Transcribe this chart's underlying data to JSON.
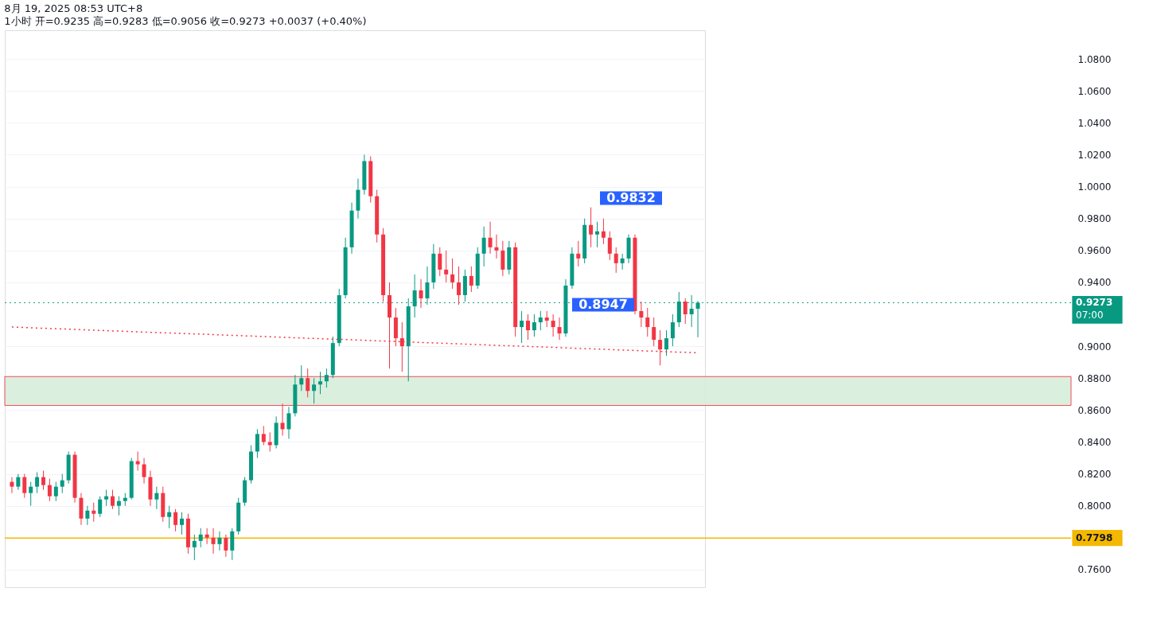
{
  "chart_data": {
    "type": "candlestick",
    "title": "8月 19, 2025 08:53 UTC+8",
    "subtitle": "1小时 开=0.9235 高=0.9283 低=0.9056 收=0.9273 +0.0037 (+0.40%)",
    "categories": [
      null,
      null,
      null,
      null,
      null,
      null,
      null,
      null,
      null,
      null,
      null,
      null,
      null,
      null,
      null,
      null,
      null,
      null,
      null,
      null,
      null,
      null,
      null,
      null,
      null,
      null,
      null,
      null,
      null,
      null,
      null,
      null,
      null,
      null,
      null,
      null,
      null,
      null,
      null,
      null,
      null,
      null,
      null,
      null,
      null,
      null,
      null,
      null,
      null,
      null,
      null,
      null,
      null,
      null,
      null,
      null,
      null,
      null,
      null,
      null,
      null,
      null,
      null,
      null,
      null,
      null,
      null,
      null,
      null,
      null,
      null,
      null,
      null,
      null,
      null,
      null,
      null,
      null,
      null,
      null,
      null,
      null,
      null,
      null,
      null,
      null,
      null,
      null,
      null,
      null,
      null,
      null,
      null,
      null,
      null,
      null,
      null,
      null,
      null,
      null,
      null,
      null,
      null,
      null,
      null,
      null,
      null,
      null,
      null,
      null
    ],
    "ohlc": [
      [
        0.815,
        0.818,
        0.808,
        0.812
      ],
      [
        0.812,
        0.82,
        0.81,
        0.818
      ],
      [
        0.818,
        0.82,
        0.805,
        0.808
      ],
      [
        0.808,
        0.815,
        0.8,
        0.812
      ],
      [
        0.812,
        0.821,
        0.808,
        0.818
      ],
      [
        0.818,
        0.822,
        0.81,
        0.813
      ],
      [
        0.813,
        0.817,
        0.803,
        0.806
      ],
      [
        0.806,
        0.815,
        0.803,
        0.812
      ],
      [
        0.812,
        0.82,
        0.808,
        0.816
      ],
      [
        0.816,
        0.834,
        0.814,
        0.832
      ],
      [
        0.832,
        0.834,
        0.802,
        0.805
      ],
      [
        0.805,
        0.808,
        0.788,
        0.792
      ],
      [
        0.792,
        0.8,
        0.788,
        0.797
      ],
      [
        0.797,
        0.802,
        0.79,
        0.795
      ],
      [
        0.795,
        0.806,
        0.793,
        0.804
      ],
      [
        0.804,
        0.81,
        0.8,
        0.806
      ],
      [
        0.806,
        0.81,
        0.798,
        0.8
      ],
      [
        0.8,
        0.806,
        0.794,
        0.803
      ],
      [
        0.803,
        0.808,
        0.8,
        0.805
      ],
      [
        0.805,
        0.83,
        0.804,
        0.828
      ],
      [
        0.828,
        0.834,
        0.822,
        0.826
      ],
      [
        0.826,
        0.83,
        0.814,
        0.818
      ],
      [
        0.818,
        0.822,
        0.8,
        0.804
      ],
      [
        0.804,
        0.812,
        0.798,
        0.808
      ],
      [
        0.808,
        0.812,
        0.79,
        0.793
      ],
      [
        0.793,
        0.8,
        0.786,
        0.796
      ],
      [
        0.796,
        0.798,
        0.784,
        0.788
      ],
      [
        0.788,
        0.796,
        0.782,
        0.792
      ],
      [
        0.792,
        0.795,
        0.77,
        0.774
      ],
      [
        0.774,
        0.782,
        0.766,
        0.778
      ],
      [
        0.778,
        0.786,
        0.774,
        0.782
      ],
      [
        0.782,
        0.786,
        0.776,
        0.78
      ],
      [
        0.78,
        0.786,
        0.77,
        0.776
      ],
      [
        0.776,
        0.784,
        0.772,
        0.78
      ],
      [
        0.78,
        0.782,
        0.768,
        0.772
      ],
      [
        0.772,
        0.786,
        0.766,
        0.784
      ],
      [
        0.784,
        0.805,
        0.782,
        0.802
      ],
      [
        0.802,
        0.818,
        0.8,
        0.816
      ],
      [
        0.816,
        0.838,
        0.814,
        0.834
      ],
      [
        0.834,
        0.848,
        0.83,
        0.845
      ],
      [
        0.845,
        0.85,
        0.838,
        0.84
      ],
      [
        0.84,
        0.846,
        0.834,
        0.838
      ],
      [
        0.838,
        0.856,
        0.836,
        0.852
      ],
      [
        0.852,
        0.864,
        0.844,
        0.848
      ],
      [
        0.848,
        0.862,
        0.842,
        0.858
      ],
      [
        0.858,
        0.882,
        0.856,
        0.876
      ],
      [
        0.876,
        0.888,
        0.872,
        0.88
      ],
      [
        0.88,
        0.886,
        0.868,
        0.872
      ],
      [
        0.872,
        0.88,
        0.864,
        0.876
      ],
      [
        0.876,
        0.884,
        0.87,
        0.878
      ],
      [
        0.878,
        0.886,
        0.874,
        0.882
      ],
      [
        0.882,
        0.906,
        0.88,
        0.902
      ],
      [
        0.902,
        0.936,
        0.9,
        0.932
      ],
      [
        0.932,
        0.968,
        0.93,
        0.962
      ],
      [
        0.962,
        0.99,
        0.958,
        0.985
      ],
      [
        0.985,
        1.005,
        0.98,
        0.998
      ],
      [
        0.998,
        1.02,
        0.995,
        1.016
      ],
      [
        1.016,
        1.019,
        0.99,
        0.994
      ],
      [
        0.994,
        0.998,
        0.965,
        0.97
      ],
      [
        0.97,
        0.974,
        0.928,
        0.932
      ],
      [
        0.932,
        0.94,
        0.886,
        0.918
      ],
      [
        0.918,
        0.924,
        0.9,
        0.905
      ],
      [
        0.905,
        0.915,
        0.884,
        0.9
      ],
      [
        0.9,
        0.93,
        0.878,
        0.925
      ],
      [
        0.925,
        0.945,
        0.918,
        0.935
      ],
      [
        0.935,
        0.942,
        0.924,
        0.93
      ],
      [
        0.93,
        0.95,
        0.926,
        0.94
      ],
      [
        0.94,
        0.964,
        0.936,
        0.958
      ],
      [
        0.958,
        0.962,
        0.944,
        0.948
      ],
      [
        0.948,
        0.96,
        0.94,
        0.945
      ],
      [
        0.945,
        0.955,
        0.936,
        0.94
      ],
      [
        0.94,
        0.95,
        0.926,
        0.932
      ],
      [
        0.932,
        0.948,
        0.928,
        0.944
      ],
      [
        0.944,
        0.95,
        0.934,
        0.938
      ],
      [
        0.938,
        0.962,
        0.936,
        0.958
      ],
      [
        0.958,
        0.975,
        0.95,
        0.968
      ],
      [
        0.968,
        0.978,
        0.958,
        0.962
      ],
      [
        0.962,
        0.97,
        0.955,
        0.96
      ],
      [
        0.96,
        0.966,
        0.944,
        0.948
      ],
      [
        0.948,
        0.966,
        0.945,
        0.962
      ],
      [
        0.962,
        0.965,
        0.906,
        0.912
      ],
      [
        0.912,
        0.922,
        0.902,
        0.916
      ],
      [
        0.916,
        0.92,
        0.904,
        0.91
      ],
      [
        0.91,
        0.92,
        0.906,
        0.915
      ],
      [
        0.915,
        0.922,
        0.91,
        0.918
      ],
      [
        0.918,
        0.922,
        0.912,
        0.916
      ],
      [
        0.916,
        0.92,
        0.906,
        0.912
      ],
      [
        0.912,
        0.918,
        0.904,
        0.908
      ],
      [
        0.908,
        0.942,
        0.906,
        0.938
      ],
      [
        0.938,
        0.962,
        0.936,
        0.958
      ],
      [
        0.958,
        0.966,
        0.95,
        0.955
      ],
      [
        0.955,
        0.98,
        0.952,
        0.976
      ],
      [
        0.976,
        0.987,
        0.962,
        0.97
      ],
      [
        0.97,
        0.978,
        0.962,
        0.972
      ],
      [
        0.972,
        0.98,
        0.964,
        0.968
      ],
      [
        0.968,
        0.972,
        0.954,
        0.958
      ],
      [
        0.958,
        0.962,
        0.946,
        0.952
      ],
      [
        0.952,
        0.958,
        0.948,
        0.955
      ],
      [
        0.955,
        0.97,
        0.952,
        0.968
      ],
      [
        0.968,
        0.97,
        0.92,
        0.922
      ],
      [
        0.922,
        0.928,
        0.912,
        0.918
      ],
      [
        0.918,
        0.924,
        0.906,
        0.912
      ],
      [
        0.912,
        0.918,
        0.9,
        0.904
      ],
      [
        0.904,
        0.91,
        0.888,
        0.898
      ],
      [
        0.898,
        0.91,
        0.894,
        0.905
      ],
      [
        0.905,
        0.92,
        0.9,
        0.915
      ],
      [
        0.915,
        0.934,
        0.912,
        0.928
      ],
      [
        0.928,
        0.93,
        0.914,
        0.92
      ],
      [
        0.92,
        0.932,
        0.912,
        0.9235
      ],
      [
        0.9235,
        0.9283,
        0.9056,
        0.9273
      ]
    ],
    "series": [
      {
        "type": "line",
        "color": "#f23645",
        "line_style": "dotted",
        "values": [
          0.912,
          0.9119,
          0.9117,
          0.9116,
          0.9114,
          0.9113,
          0.9111,
          0.911,
          0.9108,
          0.9107,
          0.9105,
          0.9104,
          0.9102,
          0.9101,
          0.9099,
          0.9098,
          0.9096,
          0.9095,
          0.9093,
          0.9092,
          0.909,
          0.9089,
          0.9087,
          0.9086,
          0.9084,
          0.9083,
          0.9082,
          0.908,
          0.9079,
          0.9077,
          0.9076,
          0.9074,
          0.9073,
          0.9071,
          0.907,
          0.9068,
          0.9067,
          0.9065,
          0.9064,
          0.9062,
          0.9061,
          0.9059,
          0.9058,
          0.9056,
          0.9055,
          0.9053,
          0.9052,
          0.905,
          0.9049,
          0.9047,
          0.9046,
          0.9044,
          0.9043,
          0.9042,
          0.904,
          0.9039,
          0.9037,
          0.9036,
          0.9034,
          0.9033,
          0.9031,
          0.903,
          0.9028,
          0.9027,
          0.9025,
          0.9024,
          0.9022,
          0.9021,
          0.9019,
          0.9018,
          0.9016,
          0.9015,
          0.9013,
          0.9012,
          0.901,
          0.9009,
          0.9007,
          0.9006,
          0.9004,
          0.9003,
          0.9002,
          0.9,
          0.8999,
          0.8997,
          0.8996,
          0.8994,
          0.8993,
          0.8991,
          0.899,
          0.8988,
          0.8987,
          0.8985,
          0.8984,
          0.8982,
          0.8981,
          0.8979,
          0.8978,
          0.8976,
          0.8975,
          0.8973,
          0.8972,
          0.897,
          0.8969,
          0.8967,
          0.8966,
          0.8964,
          0.8963,
          0.8962,
          0.896,
          0.8959
        ]
      }
    ],
    "ylim": [
      0.749,
      1.098
    ],
    "yticks": [
      {
        "value": 0.76,
        "label": "0.7600"
      },
      {
        "value": 0.8,
        "label": "0.8000"
      },
      {
        "value": 0.82,
        "label": "0.8200"
      },
      {
        "value": 0.84,
        "label": "0.8400"
      },
      {
        "value": 0.86,
        "label": "0.8600"
      },
      {
        "value": 0.88,
        "label": "0.8800"
      },
      {
        "value": 0.9,
        "label": "0.9000"
      },
      {
        "value": 0.94,
        "label": "0.9400"
      },
      {
        "value": 0.96,
        "label": "0.9600"
      },
      {
        "value": 0.98,
        "label": "0.9800"
      },
      {
        "value": 1.0,
        "label": "1.0000"
      },
      {
        "value": 1.02,
        "label": "1.0200"
      },
      {
        "value": 1.04,
        "label": "1.0400"
      },
      {
        "value": 1.06,
        "label": "1.0600"
      },
      {
        "value": 1.08,
        "label": "1.0800"
      }
    ],
    "tick_labels": "y",
    "grid": "y",
    "ref_lines": [
      {
        "axis": "y",
        "value": 0.9273,
        "label": "0.9273",
        "color": "#089981",
        "line_style": "dotted"
      },
      {
        "axis": "y",
        "value": 0.7798,
        "label": "0.7798",
        "color": "#f5b800",
        "line_style": "solid"
      }
    ],
    "bands": [
      {
        "axis": "y",
        "from": 0.8629,
        "to": 0.881,
        "color": "#d6eedb"
      }
    ],
    "annotations": [
      "0.9832",
      "0.8947",
      "07:00"
    ]
  }
}
